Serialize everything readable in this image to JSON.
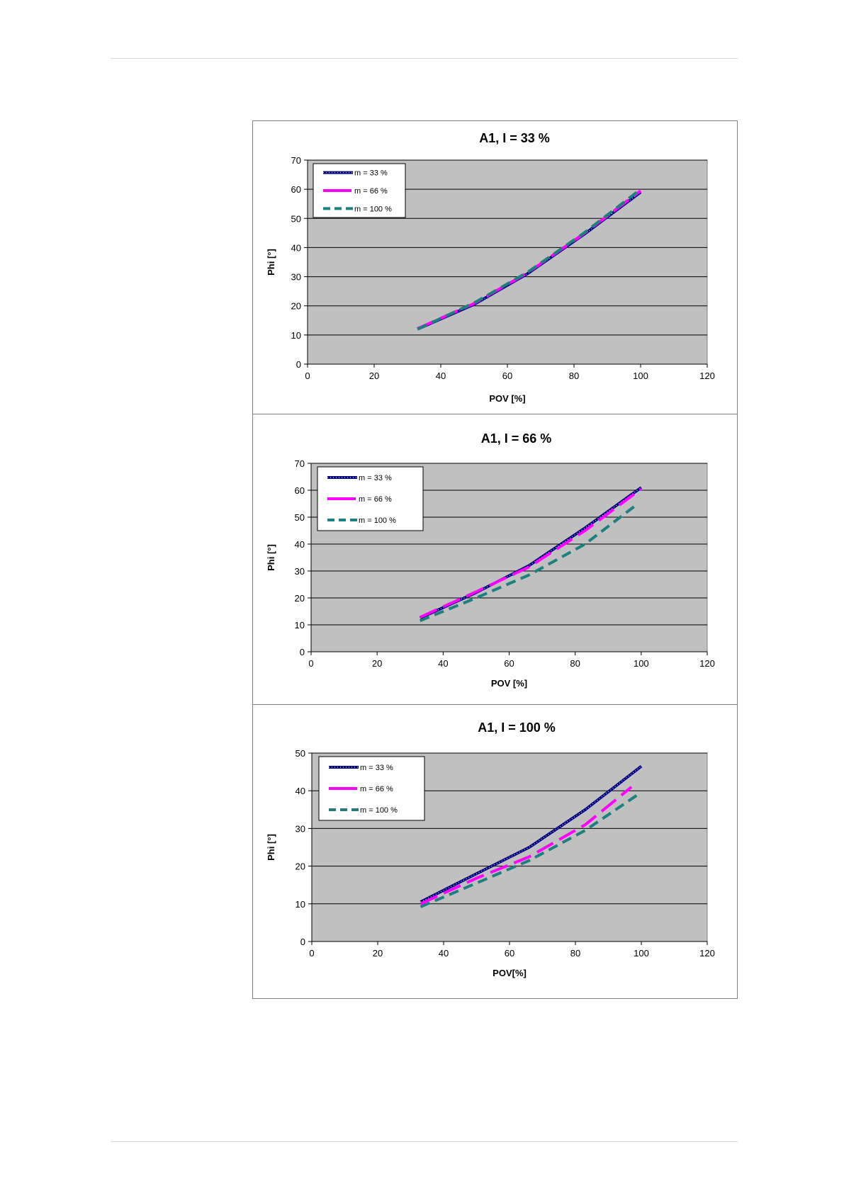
{
  "chart_data": [
    {
      "type": "line",
      "title": "A1, I = 33 %",
      "xlabel": "POV [%]",
      "ylabel": "Phi [°]",
      "xlim": [
        0,
        120
      ],
      "ylim": [
        0,
        70
      ],
      "xticks": [
        0,
        20,
        40,
        60,
        80,
        100,
        120
      ],
      "yticks": [
        0,
        10,
        20,
        30,
        40,
        50,
        60,
        70
      ],
      "grid": "horizontal",
      "legend": "top-left",
      "series": [
        {
          "name": "m = 33 %",
          "color": "#000080",
          "style": "dotted-thick",
          "x": [
            33,
            50,
            66,
            83,
            100
          ],
          "y": [
            12,
            20.5,
            31,
            44.5,
            59
          ]
        },
        {
          "name": "m = 66 %",
          "color": "#ff00ff",
          "style": "long-dash",
          "x": [
            33,
            50,
            66,
            83,
            100
          ],
          "y": [
            12.2,
            20.8,
            31.3,
            44.8,
            59.5
          ]
        },
        {
          "name": "m = 100 %",
          "color": "#1f7f7f",
          "style": "dash",
          "x": [
            33,
            50,
            66,
            83,
            100
          ],
          "y": [
            12,
            21,
            31.5,
            45,
            60
          ]
        }
      ]
    },
    {
      "type": "line",
      "title": "A1,  I = 66 %",
      "xlabel": "POV [%]",
      "ylabel": "Phi [°]",
      "xlim": [
        0,
        120
      ],
      "ylim": [
        0,
        70
      ],
      "xticks": [
        0,
        20,
        40,
        60,
        80,
        100,
        120
      ],
      "yticks": [
        0,
        10,
        20,
        30,
        40,
        50,
        60,
        70
      ],
      "grid": "horizontal",
      "legend": "top-left",
      "series": [
        {
          "name": "m = 33 %",
          "color": "#000080",
          "style": "dotted-thick",
          "x": [
            33,
            50,
            66,
            83,
            100
          ],
          "y": [
            12.5,
            22,
            32,
            46,
            61
          ]
        },
        {
          "name": "m = 66 %",
          "color": "#ff00ff",
          "style": "long-dash",
          "x": [
            33,
            50,
            66,
            83,
            100
          ],
          "y": [
            12.8,
            22.3,
            31.5,
            45,
            60.5
          ]
        },
        {
          "name": "m = 100 %",
          "color": "#1f7f7f",
          "style": "dash",
          "x": [
            33,
            50,
            66,
            83,
            99
          ],
          "y": [
            11.5,
            20,
            28.5,
            40,
            55
          ]
        }
      ]
    },
    {
      "type": "line",
      "title": "A1,  I = 100 %",
      "xlabel": "POV[%]",
      "ylabel": "Phi [°]",
      "xlim": [
        0,
        120
      ],
      "ylim": [
        0,
        50
      ],
      "xticks": [
        0,
        20,
        40,
        60,
        80,
        100,
        120
      ],
      "yticks": [
        0,
        10,
        20,
        30,
        40,
        50
      ],
      "grid": "horizontal",
      "legend": "top-left",
      "series": [
        {
          "name": "m = 33 %",
          "color": "#000080",
          "style": "dotted-thick",
          "x": [
            33,
            50,
            66,
            83,
            100
          ],
          "y": [
            10.5,
            18,
            25,
            35,
            46.5
          ]
        },
        {
          "name": "m = 66 %",
          "color": "#ff00ff",
          "style": "long-dash",
          "x": [
            33,
            50,
            66,
            83,
            97
          ],
          "y": [
            10,
            16.8,
            22.5,
            31,
            41
          ]
        },
        {
          "name": "m = 100 %",
          "color": "#1f7f7f",
          "style": "dash",
          "x": [
            33,
            50,
            66,
            83,
            99
          ],
          "y": [
            9.2,
            15.5,
            21.5,
            29.5,
            39
          ]
        }
      ]
    }
  ]
}
